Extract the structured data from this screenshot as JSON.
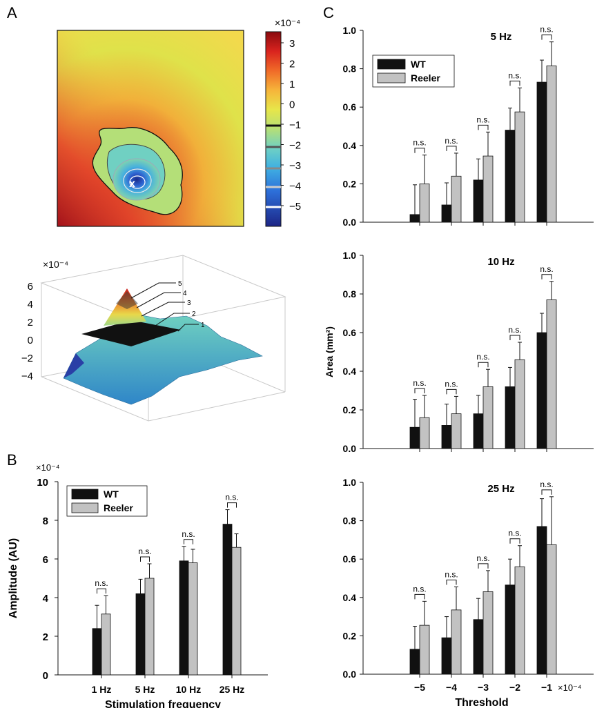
{
  "panels": {
    "a": "A",
    "b": "B",
    "c": "C"
  },
  "colormap": {
    "exponent_label": "×10⁻⁴",
    "ticks": [
      "3",
      "2",
      "1",
      "0",
      "−1",
      "−2",
      "−3",
      "−4",
      "−5"
    ],
    "colors": [
      "#1d2a8c",
      "#2c5fd4",
      "#3fa6e0",
      "#6ed0c4",
      "#b7e27a",
      "#e8e64a",
      "#f4b83b",
      "#ec6a27",
      "#c9201e",
      "#9b0f12"
    ],
    "marker": "x"
  },
  "surface": {
    "exponent_label": "×10⁻⁴",
    "z_ticks": [
      "6",
      "4",
      "2",
      "0",
      "−2",
      "−4"
    ],
    "contour_labels": [
      "5",
      "4",
      "3",
      "2",
      "1"
    ]
  },
  "chart_data": [
    {
      "id": "B",
      "type": "bar",
      "xlabel": "Stimulation frequency",
      "ylabel": "Amplitude (AU)",
      "exponent_label": "×10⁻⁴",
      "ylim": [
        0,
        10
      ],
      "yticks": [
        "0",
        "2",
        "4",
        "6",
        "8",
        "10"
      ],
      "categories": [
        "1 Hz",
        "5 Hz",
        "10 Hz",
        "25 Hz"
      ],
      "series": [
        {
          "name": "WT",
          "color": "#111111",
          "values": [
            2.4,
            4.2,
            5.9,
            7.8
          ],
          "errors": [
            1.2,
            0.75,
            0.75,
            0.75
          ]
        },
        {
          "name": "Reeler",
          "color": "#c2c2c2",
          "values": [
            3.15,
            5.0,
            5.8,
            6.6
          ],
          "errors": [
            0.95,
            0.75,
            0.7,
            0.7
          ]
        }
      ],
      "annotations": [
        "n.s.",
        "n.s.",
        "n.s.",
        "n.s."
      ],
      "legend": "top-left"
    },
    {
      "id": "C",
      "type": "bar",
      "ylabel": "Area (mm²)",
      "xlabel": "Threshold",
      "x_exponent_label": "×10⁻⁴",
      "ylim": [
        0,
        1.0
      ],
      "yticks": [
        "0.0",
        "0.2",
        "0.4",
        "0.6",
        "0.8",
        "1.0"
      ],
      "categories": [
        "−5",
        "−4",
        "−3",
        "−2",
        "−1"
      ],
      "legend": "top-left",
      "legend_labels": [
        "WT",
        "Reeler"
      ],
      "subplots": [
        {
          "title": "5 Hz",
          "series": [
            {
              "name": "WT",
              "values": [
                0.04,
                0.09,
                0.22,
                0.48,
                0.73
              ],
              "errors": [
                0.155,
                0.115,
                0.11,
                0.115,
                0.115
              ]
            },
            {
              "name": "Reeler",
              "values": [
                0.2,
                0.24,
                0.345,
                0.575,
                0.815
              ],
              "errors": [
                0.15,
                0.12,
                0.125,
                0.125,
                0.125
              ]
            }
          ],
          "annotations": [
            "n.s.",
            "n.s.",
            "n.s.",
            "n.s.",
            "n.s."
          ]
        },
        {
          "title": "10 Hz",
          "series": [
            {
              "name": "WT",
              "values": [
                0.11,
                0.12,
                0.18,
                0.32,
                0.6
              ],
              "errors": [
                0.145,
                0.11,
                0.095,
                0.1,
                0.1
              ]
            },
            {
              "name": "Reeler",
              "values": [
                0.16,
                0.18,
                0.32,
                0.46,
                0.77
              ],
              "errors": [
                0.115,
                0.09,
                0.09,
                0.09,
                0.095
              ]
            }
          ],
          "annotations": [
            "n.s.",
            "n.s.",
            "n.s.",
            "n.s.",
            "n.s."
          ]
        },
        {
          "title": "25 Hz",
          "series": [
            {
              "name": "WT",
              "values": [
                0.13,
                0.19,
                0.285,
                0.465,
                0.77
              ],
              "errors": [
                0.12,
                0.11,
                0.11,
                0.135,
                0.145
              ]
            },
            {
              "name": "Reeler",
              "values": [
                0.255,
                0.335,
                0.43,
                0.56,
                0.675
              ],
              "errors": [
                0.125,
                0.12,
                0.11,
                0.11,
                0.25
              ]
            }
          ],
          "annotations": [
            "n.s.",
            "n.s.",
            "n.s.",
            "n.s.",
            "n.s."
          ]
        }
      ]
    }
  ]
}
